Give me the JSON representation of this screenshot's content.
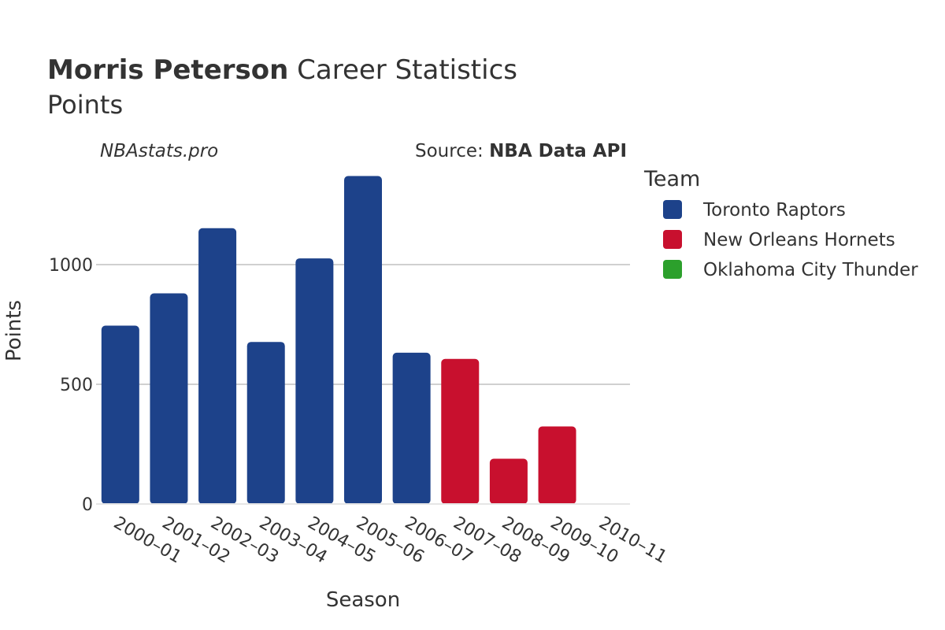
{
  "title": {
    "bold": "Morris Peterson",
    "rest": " Career Statistics"
  },
  "subtitle": "Points",
  "watermark": "NBAstats.pro",
  "source": {
    "prefix": "Source: ",
    "name": "NBA Data API"
  },
  "legend": {
    "title": "Team",
    "items": [
      {
        "label": "Toronto Raptors",
        "color": "#1d428a"
      },
      {
        "label": "New Orleans Hornets",
        "color": "#c8102e"
      },
      {
        "label": "Oklahoma City Thunder",
        "color": "#2ca02c"
      }
    ]
  },
  "chart_data": {
    "type": "bar",
    "title": "Morris Peterson Career Statistics",
    "subtitle": "Points",
    "xlabel": "Season",
    "ylabel": "Points",
    "ylim": [
      0,
      1400
    ],
    "yticks": [
      0,
      500,
      1000
    ],
    "grid": true,
    "legend_position": "right",
    "categories": [
      "2000–01",
      "2001–02",
      "2002–03",
      "2003–04",
      "2004–05",
      "2005–06",
      "2006–07",
      "2007–08",
      "2008–09",
      "2009–10",
      "2010–11"
    ],
    "series": [
      {
        "name": "Toronto Raptors",
        "color": "#1d428a",
        "values": [
          745,
          880,
          1152,
          677,
          1026,
          1370,
          632,
          null,
          null,
          null,
          null
        ]
      },
      {
        "name": "New Orleans Hornets",
        "color": "#c8102e",
        "values": [
          null,
          null,
          null,
          null,
          null,
          null,
          null,
          606,
          189,
          324,
          null
        ]
      },
      {
        "name": "Oklahoma City Thunder",
        "color": "#2ca02c",
        "values": [
          null,
          null,
          null,
          null,
          null,
          null,
          null,
          null,
          null,
          null,
          3
        ]
      }
    ]
  }
}
